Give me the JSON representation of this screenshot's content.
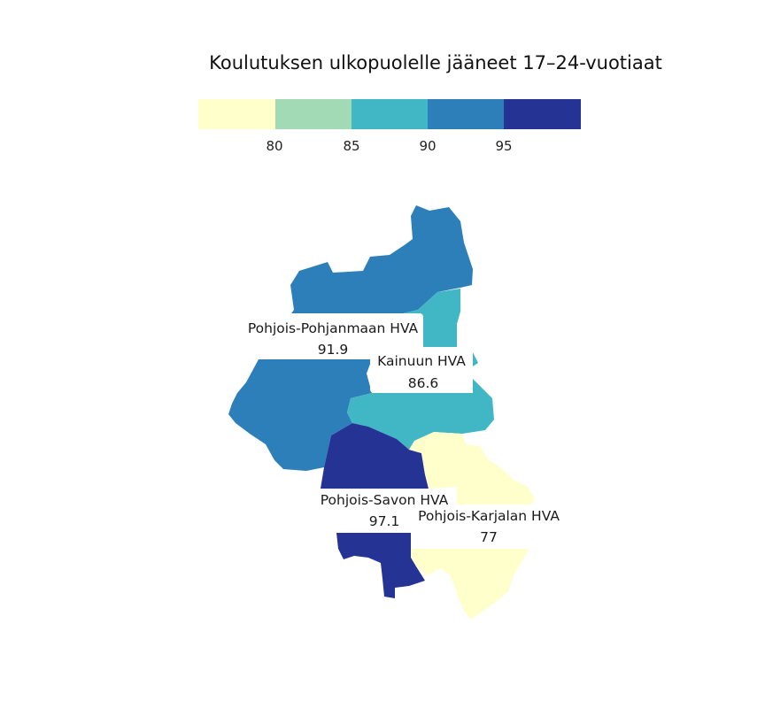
{
  "title": "Koulutuksen ulkopuolelle jääneet 17–24-vuotiaat",
  "legend": {
    "ticks": [
      "80",
      "85",
      "90",
      "95"
    ],
    "colors": [
      "#ffffcc",
      "#a1dab4",
      "#41b6c4",
      "#2c7fb8",
      "#253494"
    ]
  },
  "chart_data": {
    "type": "choropleth",
    "title": "Koulutuksen ulkopuolelle jääneet 17–24-vuotiaat",
    "color_scale": {
      "breaks": [
        80,
        85,
        90,
        95
      ],
      "colors": [
        "#ffffcc",
        "#a1dab4",
        "#41b6c4",
        "#2c7fb8",
        "#253494"
      ]
    },
    "regions": [
      {
        "name": "Pohjois-Pohjanmaan HVA",
        "value": "91.9",
        "color": "#2c7fb8"
      },
      {
        "name": "Kainuun HVA",
        "value": "86.6",
        "color": "#41b6c4"
      },
      {
        "name": "Pohjois-Savon HVA",
        "value": "97.1",
        "color": "#253494"
      },
      {
        "name": "Pohjois-Karjalan HVA",
        "value": "77",
        "color": "#ffffcc"
      }
    ]
  }
}
